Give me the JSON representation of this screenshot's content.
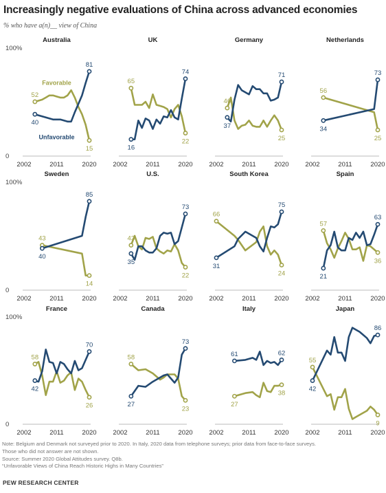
{
  "title": "Increasingly negative evaluations of China across advanced economies",
  "subtitle": "% who have a(n)__ view of China",
  "footer": {
    "note": "Note: Belgium and Denmark not surveyed prior to 2020. In Italy, 2020 data from telephone surveys; prior data from face-to-face surveys.",
    "note2": "Those who did not answer are not shown.",
    "source": "Source: Summer 2020 Global Attitudes survey. Q8b.",
    "report": "“Unfavorable Views of China Reach Historic Highs in Many Countries”",
    "org": "PEW RESEARCH CENTER"
  },
  "colors": {
    "favorable": "#a1a349",
    "unfavorable": "#244a72"
  },
  "legend": {
    "favorable": "Favorable",
    "unfavorable": "Unfavorable"
  },
  "axis": {
    "y_top": "100%",
    "y_zero": "0",
    "x_ticks": [
      "2002",
      "2011",
      "2020"
    ]
  },
  "chart_data": [
    {
      "type": "line",
      "title": "Australia",
      "xlim": [
        2002,
        2020
      ],
      "ylim": [
        0,
        100
      ],
      "series": [
        {
          "name": "Favorable",
          "x": [
            2005,
            2007,
            2008,
            2009,
            2010,
            2011,
            2012,
            2013,
            2014,
            2015,
            2016,
            2017,
            2018,
            2019,
            2020
          ],
          "y": [
            52,
            54,
            56,
            58,
            58,
            57,
            56,
            56,
            58,
            63,
            56,
            47,
            40,
            30,
            15
          ]
        },
        {
          "name": "Unfavorable",
          "x": [
            2005,
            2007,
            2008,
            2009,
            2010,
            2011,
            2012,
            2013,
            2014,
            2015,
            2016,
            2017,
            2018,
            2019,
            2020
          ],
          "y": [
            40,
            38,
            37,
            36,
            35,
            35,
            35,
            34,
            33,
            33,
            42,
            50,
            58,
            70,
            81
          ]
        }
      ],
      "labels": {
        "fav_start": "52",
        "unf_start": "40",
        "fav_end": "15",
        "unf_end": "81"
      }
    },
    {
      "type": "line",
      "title": "UK",
      "xlim": [
        2002,
        2020
      ],
      "ylim": [
        0,
        100
      ],
      "series": [
        {
          "name": "Favorable",
          "x": [
            2005,
            2006,
            2007,
            2008,
            2009,
            2010,
            2011,
            2012,
            2013,
            2014,
            2015,
            2016,
            2017,
            2018,
            2019,
            2020
          ],
          "y": [
            65,
            49,
            49,
            49,
            52,
            46,
            59,
            49,
            48,
            47,
            45,
            37,
            45,
            49,
            38,
            22
          ]
        },
        {
          "name": "Unfavorable",
          "x": [
            2005,
            2006,
            2007,
            2008,
            2009,
            2010,
            2011,
            2012,
            2013,
            2014,
            2015,
            2016,
            2017,
            2018,
            2019,
            2020
          ],
          "y": [
            16,
            16,
            34,
            27,
            36,
            34,
            26,
            35,
            31,
            38,
            37,
            44,
            37,
            35,
            55,
            74
          ]
        }
      ],
      "labels": {
        "fav_start": "65",
        "unf_start": "16",
        "fav_end": "22",
        "unf_end": "74"
      }
    },
    {
      "type": "line",
      "title": "Germany",
      "xlim": [
        2002,
        2020
      ],
      "ylim": [
        0,
        100
      ],
      "series": [
        {
          "name": "Favorable",
          "x": [
            2005,
            2006,
            2007,
            2008,
            2009,
            2010,
            2011,
            2012,
            2013,
            2014,
            2015,
            2016,
            2017,
            2018,
            2019,
            2020
          ],
          "y": [
            46,
            56,
            34,
            26,
            29,
            30,
            34,
            29,
            28,
            28,
            34,
            28,
            34,
            39,
            34,
            25
          ]
        },
        {
          "name": "Unfavorable",
          "x": [
            2005,
            2006,
            2007,
            2008,
            2009,
            2010,
            2011,
            2012,
            2013,
            2014,
            2015,
            2016,
            2017,
            2018,
            2019,
            2020
          ],
          "y": [
            37,
            33,
            54,
            68,
            63,
            61,
            59,
            67,
            64,
            64,
            60,
            60,
            53,
            54,
            56,
            71
          ]
        }
      ],
      "labels": {
        "fav_start": "46",
        "unf_start": "37",
        "fav_end": "25",
        "unf_end": "71"
      }
    },
    {
      "type": "line",
      "title": "Netherlands",
      "xlim": [
        2002,
        2020
      ],
      "ylim": [
        0,
        100
      ],
      "series": [
        {
          "name": "Favorable",
          "x": [
            2005,
            2019,
            2020
          ],
          "y": [
            56,
            42,
            25
          ]
        },
        {
          "name": "Unfavorable",
          "x": [
            2005,
            2019,
            2020
          ],
          "y": [
            34,
            45,
            73
          ]
        }
      ],
      "labels": {
        "fav_start": "56",
        "unf_start": "34",
        "fav_end": "25",
        "unf_end": "73"
      }
    },
    {
      "type": "line",
      "title": "Sweden",
      "xlim": [
        2002,
        2020
      ],
      "ylim": [
        0,
        100
      ],
      "series": [
        {
          "name": "Favorable",
          "x": [
            2007,
            2018,
            2019,
            2020
          ],
          "y": [
            43,
            35,
            14,
            14
          ]
        },
        {
          "name": "Unfavorable",
          "x": [
            2007,
            2018,
            2019,
            2020
          ],
          "y": [
            40,
            52,
            70,
            85
          ]
        }
      ],
      "labels": {
        "fav_start": "43",
        "unf_start": "40",
        "fav_end": "14",
        "unf_end": "85"
      }
    },
    {
      "type": "line",
      "title": "U.S.",
      "xlim": [
        2002,
        2020
      ],
      "ylim": [
        0,
        100
      ],
      "series": [
        {
          "name": "Favorable",
          "x": [
            2005,
            2006,
            2007,
            2008,
            2009,
            2010,
            2011,
            2012,
            2013,
            2014,
            2015,
            2016,
            2017,
            2018,
            2019,
            2020
          ],
          "y": [
            43,
            52,
            42,
            39,
            50,
            49,
            51,
            40,
            37,
            35,
            38,
            37,
            44,
            38,
            26,
            22
          ]
        },
        {
          "name": "Unfavorable",
          "x": [
            2005,
            2006,
            2007,
            2008,
            2009,
            2010,
            2011,
            2012,
            2013,
            2014,
            2015,
            2016,
            2017,
            2018,
            2019,
            2020
          ],
          "y": [
            35,
            29,
            42,
            42,
            38,
            36,
            36,
            40,
            52,
            55,
            54,
            55,
            44,
            47,
            60,
            73
          ]
        }
      ],
      "labels": {
        "fav_start": "43",
        "unf_start": "35",
        "fav_end": "22",
        "unf_end": "73"
      }
    },
    {
      "type": "line",
      "title": "South Korea",
      "xlim": [
        2002,
        2020
      ],
      "ylim": [
        0,
        100
      ],
      "series": [
        {
          "name": "Favorable",
          "x": [
            2002,
            2007,
            2008,
            2010,
            2013,
            2014,
            2015,
            2016,
            2017,
            2018,
            2019,
            2020
          ],
          "y": [
            66,
            52,
            48,
            38,
            46,
            56,
            61,
            42,
            34,
            38,
            34,
            24
          ]
        },
        {
          "name": "Unfavorable",
          "x": [
            2002,
            2007,
            2008,
            2010,
            2013,
            2014,
            2015,
            2016,
            2017,
            2018,
            2019,
            2020
          ],
          "y": [
            31,
            42,
            49,
            56,
            50,
            42,
            37,
            50,
            61,
            60,
            63,
            75
          ]
        }
      ],
      "labels": {
        "fav_start": "66",
        "unf_start": "31",
        "fav_end": "24",
        "unf_end": "75"
      }
    },
    {
      "type": "line",
      "title": "Spain",
      "xlim": [
        2002,
        2020
      ],
      "ylim": [
        0,
        100
      ],
      "series": [
        {
          "name": "Favorable",
          "x": [
            2005,
            2006,
            2007,
            2008,
            2009,
            2010,
            2011,
            2012,
            2013,
            2014,
            2015,
            2016,
            2017,
            2018,
            2019,
            2020
          ],
          "y": [
            57,
            45,
            39,
            31,
            40,
            47,
            55,
            49,
            39,
            39,
            41,
            28,
            43,
            42,
            39,
            36
          ]
        },
        {
          "name": "Unfavorable",
          "x": [
            2005,
            2006,
            2007,
            2008,
            2009,
            2010,
            2011,
            2012,
            2013,
            2014,
            2015,
            2016,
            2017,
            2018,
            2019,
            2020
          ],
          "y": [
            21,
            38,
            43,
            56,
            41,
            38,
            38,
            50,
            48,
            55,
            50,
            56,
            43,
            44,
            53,
            63
          ]
        }
      ],
      "labels": {
        "fav_start": "57",
        "unf_start": "21",
        "fav_end": "36",
        "unf_end": "63"
      }
    },
    {
      "type": "line",
      "title": "France",
      "xlim": [
        2002,
        2020
      ],
      "ylim": [
        0,
        100
      ],
      "series": [
        {
          "name": "Favorable",
          "x": [
            2005,
            2006,
            2007,
            2008,
            2009,
            2010,
            2011,
            2012,
            2013,
            2014,
            2015,
            2016,
            2017,
            2018,
            2019,
            2020
          ],
          "y": [
            58,
            60,
            47,
            28,
            41,
            41,
            51,
            40,
            42,
            47,
            50,
            33,
            44,
            41,
            33,
            26
          ]
        },
        {
          "name": "Unfavorable",
          "x": [
            2005,
            2006,
            2007,
            2008,
            2009,
            2010,
            2011,
            2012,
            2013,
            2014,
            2015,
            2016,
            2017,
            2018,
            2019,
            2020
          ],
          "y": [
            42,
            41,
            51,
            72,
            60,
            59,
            49,
            60,
            58,
            53,
            49,
            61,
            52,
            54,
            62,
            70
          ]
        }
      ],
      "labels": {
        "fav_start": "58",
        "unf_start": "42",
        "fav_end": "26",
        "unf_end": "70"
      }
    },
    {
      "type": "line",
      "title": "Canada",
      "xlim": [
        2002,
        2020
      ],
      "ylim": [
        0,
        100
      ],
      "series": [
        {
          "name": "Favorable",
          "x": [
            2005,
            2007,
            2009,
            2011,
            2013,
            2014,
            2015,
            2017,
            2018,
            2019,
            2020
          ],
          "y": [
            58,
            52,
            53,
            49,
            43,
            45,
            48,
            48,
            44,
            27,
            23
          ]
        },
        {
          "name": "Unfavorable",
          "x": [
            2005,
            2007,
            2009,
            2011,
            2013,
            2014,
            2015,
            2017,
            2018,
            2019,
            2020
          ],
          "y": [
            27,
            37,
            36,
            41,
            45,
            47,
            48,
            40,
            45,
            67,
            73
          ]
        }
      ],
      "labels": {
        "fav_start": "58",
        "unf_start": "27",
        "fav_end": "23",
        "unf_end": "73"
      }
    },
    {
      "type": "line",
      "title": "Italy",
      "xlim": [
        2002,
        2020
      ],
      "ylim": [
        0,
        100
      ],
      "series": [
        {
          "name": "Favorable",
          "x": [
            2007,
            2010,
            2012,
            2013,
            2014,
            2015,
            2016,
            2017,
            2018,
            2019,
            2020
          ],
          "y": [
            27,
            30,
            31,
            28,
            26,
            40,
            32,
            31,
            37,
            37,
            38
          ]
        },
        {
          "name": "Unfavorable",
          "x": [
            2007,
            2010,
            2012,
            2013,
            2014,
            2015,
            2016,
            2017,
            2018,
            2019,
            2020
          ],
          "y": [
            61,
            62,
            64,
            62,
            70,
            57,
            61,
            59,
            60,
            57,
            62
          ]
        }
      ],
      "labels": {
        "fav_start": "27",
        "unf_start": "61",
        "fav_end": "38",
        "unf_end": "62"
      }
    },
    {
      "type": "line",
      "title": "Japan",
      "xlim": [
        2002,
        2020
      ],
      "ylim": [
        0,
        100
      ],
      "series": [
        {
          "name": "Favorable",
          "x": [
            2002,
            2006,
            2007,
            2008,
            2009,
            2010,
            2011,
            2012,
            2013,
            2014,
            2015,
            2016,
            2017,
            2018,
            2019,
            2020
          ],
          "y": [
            55,
            27,
            29,
            14,
            26,
            26,
            34,
            15,
            5,
            7,
            9,
            11,
            13,
            17,
            14,
            9
          ]
        },
        {
          "name": "Unfavorable",
          "x": [
            2002,
            2006,
            2007,
            2008,
            2009,
            2010,
            2011,
            2012,
            2013,
            2014,
            2015,
            2016,
            2017,
            2018,
            2019,
            2020
          ],
          "y": [
            42,
            71,
            67,
            84,
            69,
            69,
            61,
            84,
            93,
            91,
            89,
            86,
            83,
            78,
            85,
            86
          ]
        }
      ],
      "labels": {
        "fav_start": "55",
        "unf_start": "42",
        "fav_end": "9",
        "unf_end": "86"
      }
    }
  ]
}
